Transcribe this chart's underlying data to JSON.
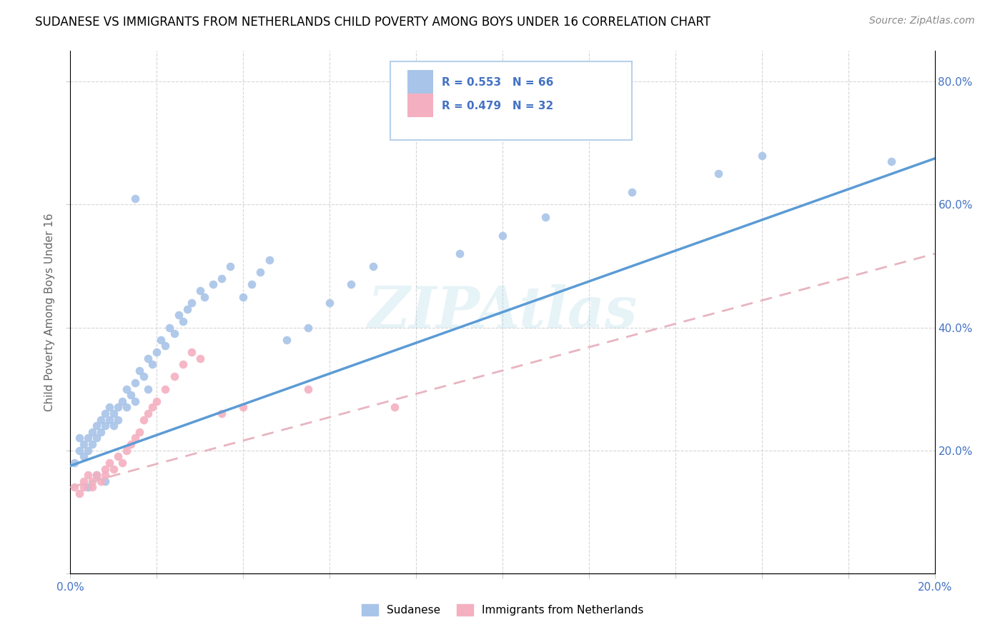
{
  "title": "SUDANESE VS IMMIGRANTS FROM NETHERLANDS CHILD POVERTY AMONG BOYS UNDER 16 CORRELATION CHART",
  "source": "Source: ZipAtlas.com",
  "ylabel": "Child Poverty Among Boys Under 16",
  "xlim": [
    0.0,
    0.2
  ],
  "ylim": [
    0.0,
    0.85
  ],
  "sudanese_R": 0.553,
  "sudanese_N": 66,
  "netherlands_R": 0.479,
  "netherlands_N": 32,
  "sudanese_color": "#a8c4e8",
  "netherlands_color": "#f4afc0",
  "sudanese_line_color": "#5b9bd5",
  "netherlands_line_color": "#e8b4c0",
  "sudanese_x": [
    0.001,
    0.002,
    0.002,
    0.003,
    0.003,
    0.004,
    0.004,
    0.005,
    0.005,
    0.006,
    0.006,
    0.007,
    0.007,
    0.008,
    0.008,
    0.009,
    0.009,
    0.01,
    0.01,
    0.011,
    0.011,
    0.012,
    0.013,
    0.013,
    0.014,
    0.015,
    0.015,
    0.016,
    0.017,
    0.018,
    0.018,
    0.019,
    0.02,
    0.021,
    0.022,
    0.023,
    0.024,
    0.025,
    0.026,
    0.027,
    0.028,
    0.03,
    0.031,
    0.033,
    0.035,
    0.037,
    0.04,
    0.042,
    0.044,
    0.046,
    0.05,
    0.055,
    0.06,
    0.065,
    0.07,
    0.09,
    0.1,
    0.11,
    0.13,
    0.15,
    0.004,
    0.006,
    0.008,
    0.015,
    0.16,
    0.19
  ],
  "sudanese_y": [
    0.18,
    0.2,
    0.22,
    0.21,
    0.19,
    0.22,
    0.2,
    0.23,
    0.21,
    0.24,
    0.22,
    0.25,
    0.23,
    0.24,
    0.26,
    0.25,
    0.27,
    0.26,
    0.24,
    0.27,
    0.25,
    0.28,
    0.3,
    0.27,
    0.29,
    0.31,
    0.28,
    0.33,
    0.32,
    0.35,
    0.3,
    0.34,
    0.36,
    0.38,
    0.37,
    0.4,
    0.39,
    0.42,
    0.41,
    0.43,
    0.44,
    0.46,
    0.45,
    0.47,
    0.48,
    0.5,
    0.45,
    0.47,
    0.49,
    0.51,
    0.38,
    0.4,
    0.44,
    0.47,
    0.5,
    0.52,
    0.55,
    0.58,
    0.62,
    0.65,
    0.14,
    0.16,
    0.15,
    0.61,
    0.68,
    0.67
  ],
  "netherlands_x": [
    0.001,
    0.002,
    0.003,
    0.003,
    0.004,
    0.005,
    0.005,
    0.006,
    0.007,
    0.008,
    0.008,
    0.009,
    0.01,
    0.011,
    0.012,
    0.013,
    0.014,
    0.015,
    0.016,
    0.017,
    0.018,
    0.019,
    0.02,
    0.022,
    0.024,
    0.026,
    0.028,
    0.03,
    0.035,
    0.04,
    0.055,
    0.075
  ],
  "netherlands_y": [
    0.14,
    0.13,
    0.15,
    0.14,
    0.16,
    0.15,
    0.14,
    0.16,
    0.15,
    0.17,
    0.16,
    0.18,
    0.17,
    0.19,
    0.18,
    0.2,
    0.21,
    0.22,
    0.23,
    0.25,
    0.26,
    0.27,
    0.28,
    0.3,
    0.32,
    0.34,
    0.36,
    0.35,
    0.26,
    0.27,
    0.3,
    0.27
  ]
}
